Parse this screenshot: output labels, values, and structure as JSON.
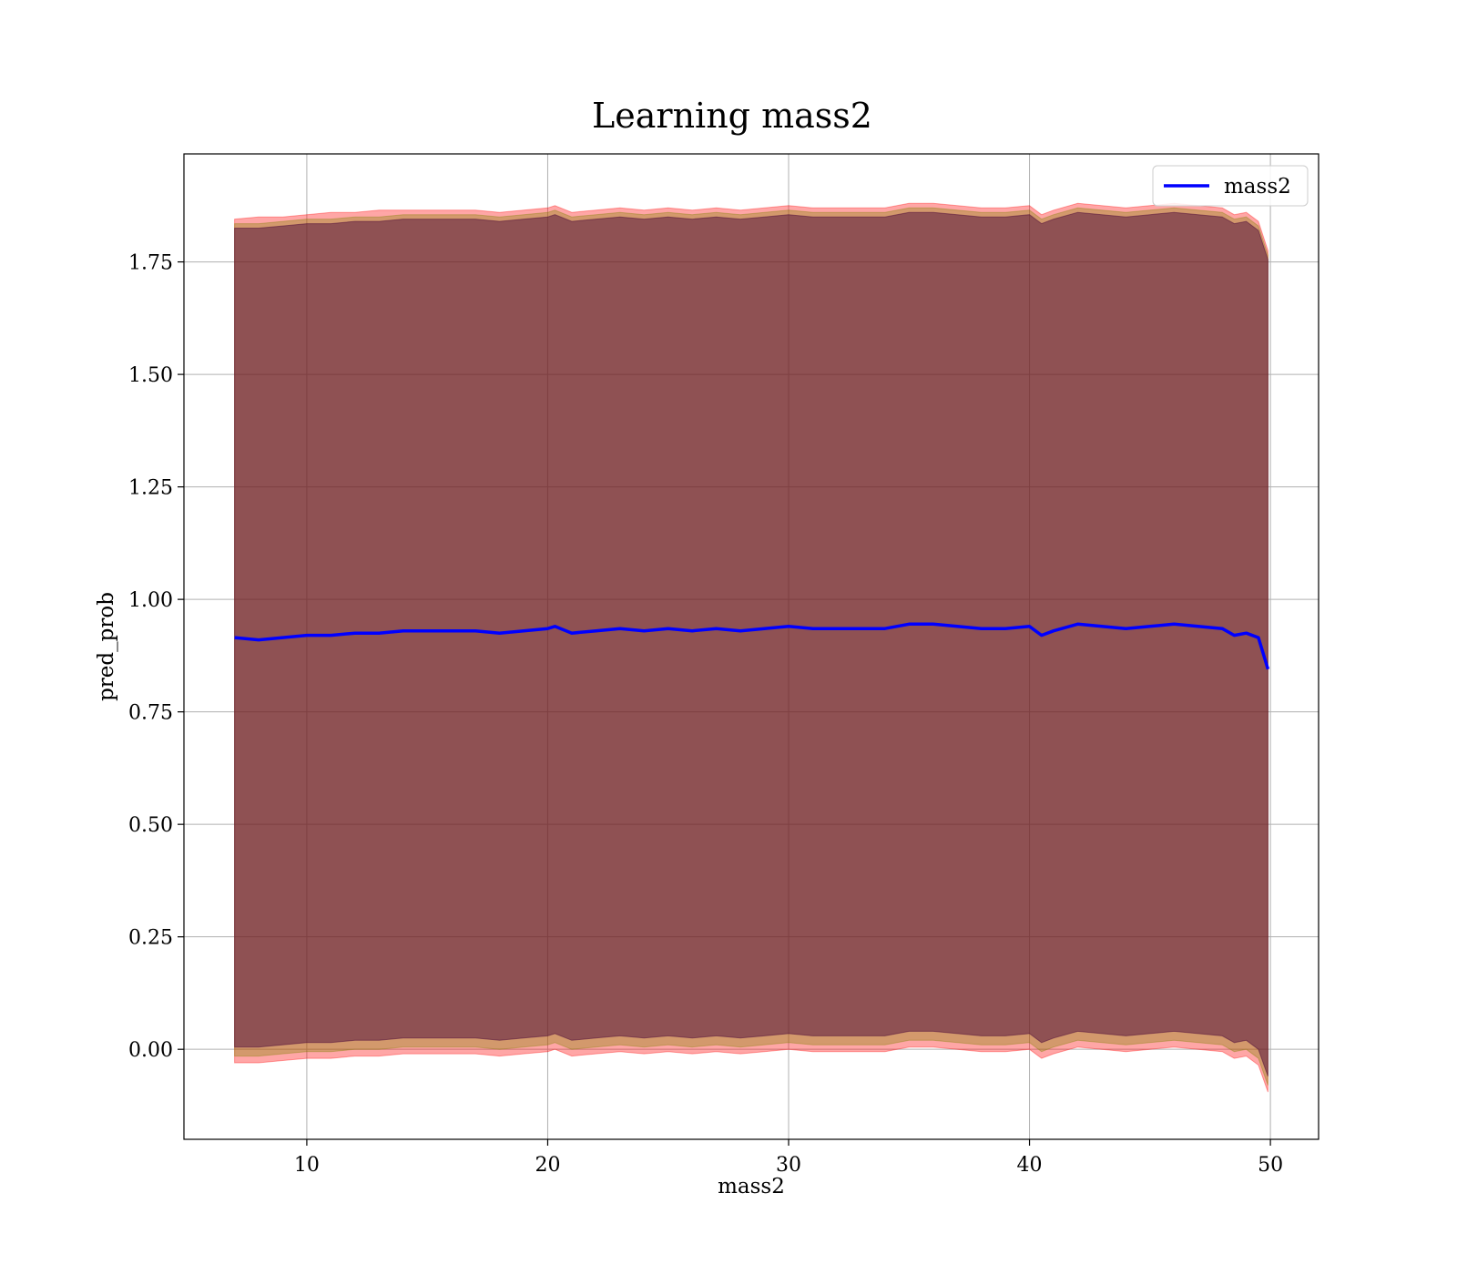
{
  "chart_data": {
    "type": "line",
    "title": "Learning mass2",
    "xlabel": "mass2",
    "ylabel": "pred_prob",
    "xlim": [
      4.9,
      52.0
    ],
    "ylim": [
      -0.2,
      1.99
    ],
    "xticks": [
      10,
      20,
      30,
      40,
      50
    ],
    "xtick_labels": [
      "10",
      "20",
      "30",
      "40",
      "50"
    ],
    "yticks": [
      0.0,
      0.25,
      0.5,
      0.75,
      1.0,
      1.25,
      1.5,
      1.75
    ],
    "ytick_labels": [
      "0.00",
      "0.25",
      "0.50",
      "0.75",
      "1.00",
      "1.25",
      "1.50",
      "1.75"
    ],
    "grid": true,
    "legend_position": "top-right",
    "x": [
      7.0,
      8.0,
      9.0,
      10.0,
      11.0,
      12.0,
      13.0,
      14.0,
      15.0,
      16.0,
      17.0,
      18.0,
      19.0,
      20.0,
      20.3,
      21.0,
      22.0,
      23.0,
      24.0,
      25.0,
      26.0,
      27.0,
      28.0,
      29.0,
      30.0,
      31.0,
      32.0,
      33.0,
      34.0,
      35.0,
      36.0,
      37.0,
      38.0,
      39.0,
      40.0,
      40.5,
      41.0,
      42.0,
      43.0,
      44.0,
      45.0,
      46.0,
      47.0,
      48.0,
      48.5,
      49.0,
      49.5,
      49.9
    ],
    "series": [
      {
        "name": "mass2",
        "color": "#0000ff",
        "values": [
          0.915,
          0.91,
          0.915,
          0.92,
          0.92,
          0.925,
          0.925,
          0.93,
          0.93,
          0.93,
          0.93,
          0.925,
          0.93,
          0.935,
          0.94,
          0.925,
          0.93,
          0.935,
          0.93,
          0.935,
          0.93,
          0.935,
          0.93,
          0.935,
          0.94,
          0.935,
          0.935,
          0.935,
          0.935,
          0.945,
          0.945,
          0.94,
          0.935,
          0.935,
          0.94,
          0.92,
          0.93,
          0.945,
          0.94,
          0.935,
          0.94,
          0.945,
          0.94,
          0.935,
          0.92,
          0.925,
          0.915,
          0.845
        ]
      }
    ],
    "bands": [
      {
        "color": "#ff0000",
        "opacity": 0.35,
        "upper": [
          1.845,
          1.85,
          1.85,
          1.855,
          1.86,
          1.86,
          1.865,
          1.865,
          1.865,
          1.865,
          1.865,
          1.86,
          1.865,
          1.87,
          1.875,
          1.86,
          1.865,
          1.87,
          1.865,
          1.87,
          1.865,
          1.87,
          1.865,
          1.87,
          1.875,
          1.87,
          1.87,
          1.87,
          1.87,
          1.88,
          1.88,
          1.875,
          1.87,
          1.87,
          1.875,
          1.855,
          1.865,
          1.88,
          1.875,
          1.87,
          1.875,
          1.88,
          1.875,
          1.87,
          1.855,
          1.86,
          1.84,
          1.775
        ],
        "lower": [
          -0.03,
          -0.03,
          -0.025,
          -0.02,
          -0.02,
          -0.015,
          -0.015,
          -0.01,
          -0.01,
          -0.01,
          -0.01,
          -0.015,
          -0.01,
          -0.005,
          0.0,
          -0.015,
          -0.01,
          -0.005,
          -0.01,
          -0.005,
          -0.01,
          -0.005,
          -0.01,
          -0.005,
          0.0,
          -0.005,
          -0.005,
          -0.005,
          -0.005,
          0.005,
          0.005,
          0.0,
          -0.005,
          -0.005,
          0.0,
          -0.02,
          -0.01,
          0.005,
          0.0,
          -0.005,
          0.0,
          0.005,
          0.0,
          -0.005,
          -0.02,
          -0.015,
          -0.035,
          -0.095
        ]
      },
      {
        "color": "#808000",
        "opacity": 0.35,
        "upper": [
          1.835,
          1.835,
          1.84,
          1.845,
          1.845,
          1.85,
          1.85,
          1.855,
          1.855,
          1.855,
          1.855,
          1.85,
          1.855,
          1.86,
          1.865,
          1.85,
          1.855,
          1.86,
          1.855,
          1.86,
          1.855,
          1.86,
          1.855,
          1.86,
          1.865,
          1.86,
          1.86,
          1.86,
          1.86,
          1.87,
          1.87,
          1.865,
          1.86,
          1.86,
          1.865,
          1.845,
          1.855,
          1.87,
          1.865,
          1.86,
          1.865,
          1.87,
          1.865,
          1.86,
          1.845,
          1.85,
          1.83,
          1.765
        ],
        "lower": [
          -0.015,
          -0.015,
          -0.01,
          -0.005,
          -0.005,
          0.0,
          0.0,
          0.005,
          0.005,
          0.005,
          0.005,
          0.0,
          0.005,
          0.01,
          0.015,
          0.0,
          0.005,
          0.01,
          0.005,
          0.01,
          0.005,
          0.01,
          0.005,
          0.01,
          0.015,
          0.01,
          0.01,
          0.01,
          0.01,
          0.02,
          0.02,
          0.015,
          0.01,
          0.01,
          0.015,
          -0.005,
          0.005,
          0.02,
          0.015,
          0.01,
          0.015,
          0.02,
          0.015,
          0.01,
          -0.005,
          0.0,
          -0.02,
          -0.08
        ]
      },
      {
        "color": "#4b0a3a",
        "opacity": 0.5,
        "upper": [
          1.825,
          1.825,
          1.83,
          1.835,
          1.835,
          1.84,
          1.84,
          1.845,
          1.845,
          1.845,
          1.845,
          1.84,
          1.845,
          1.85,
          1.855,
          1.84,
          1.845,
          1.85,
          1.845,
          1.85,
          1.845,
          1.85,
          1.845,
          1.85,
          1.855,
          1.85,
          1.85,
          1.85,
          1.85,
          1.86,
          1.86,
          1.855,
          1.85,
          1.85,
          1.855,
          1.835,
          1.845,
          1.86,
          1.855,
          1.85,
          1.855,
          1.86,
          1.855,
          1.85,
          1.835,
          1.84,
          1.82,
          1.755
        ],
        "lower": [
          0.005,
          0.005,
          0.01,
          0.015,
          0.015,
          0.02,
          0.02,
          0.025,
          0.025,
          0.025,
          0.025,
          0.02,
          0.025,
          0.03,
          0.035,
          0.02,
          0.025,
          0.03,
          0.025,
          0.03,
          0.025,
          0.03,
          0.025,
          0.03,
          0.035,
          0.03,
          0.03,
          0.03,
          0.03,
          0.04,
          0.04,
          0.035,
          0.03,
          0.03,
          0.035,
          0.015,
          0.025,
          0.04,
          0.035,
          0.03,
          0.035,
          0.04,
          0.035,
          0.03,
          0.015,
          0.02,
          0.0,
          -0.06
        ]
      }
    ]
  }
}
